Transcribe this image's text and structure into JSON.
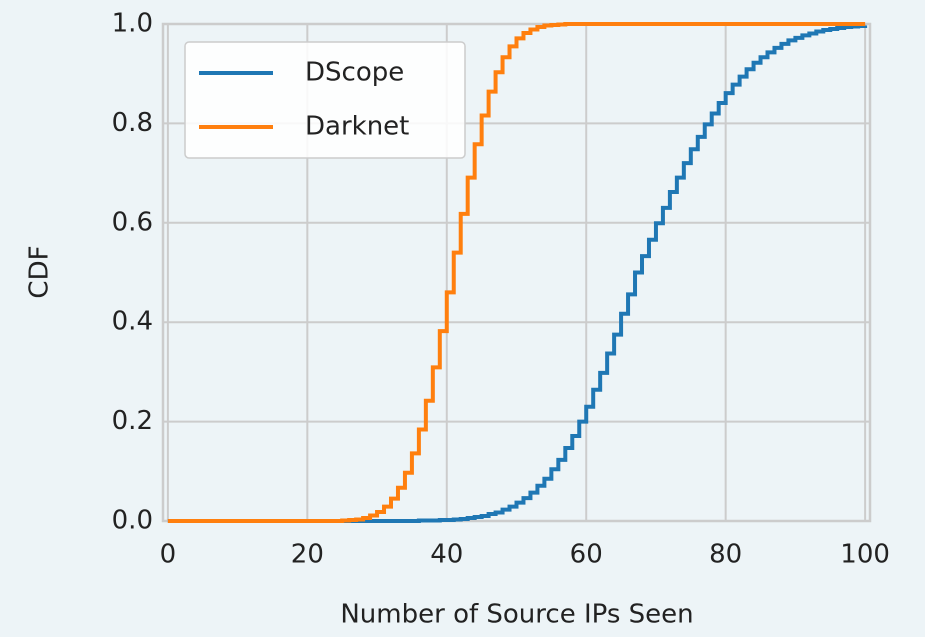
{
  "chart_data": {
    "type": "step",
    "xlabel": "Number of Source IPs Seen",
    "ylabel": "CDF",
    "x": [
      0,
      1,
      2,
      3,
      4,
      5,
      6,
      7,
      8,
      9,
      10,
      11,
      12,
      13,
      14,
      15,
      16,
      17,
      18,
      19,
      20,
      21,
      22,
      23,
      24,
      25,
      26,
      27,
      28,
      29,
      30,
      31,
      32,
      33,
      34,
      35,
      36,
      37,
      38,
      39,
      40,
      41,
      42,
      43,
      44,
      45,
      46,
      47,
      48,
      49,
      50,
      51,
      52,
      53,
      54,
      55,
      56,
      57,
      58,
      59,
      60,
      61,
      62,
      63,
      64,
      65,
      66,
      67,
      68,
      69,
      70,
      71,
      72,
      73,
      74,
      75,
      76,
      77,
      78,
      79,
      80,
      81,
      82,
      83,
      84,
      85,
      86,
      87,
      88,
      89,
      90,
      91,
      92,
      93,
      94,
      95,
      96,
      97,
      98,
      99,
      100
    ],
    "series": [
      {
        "name": "DScope",
        "color": "#1f77b4",
        "values": [
          0,
          0,
          0,
          0,
          0,
          0,
          0,
          0,
          0,
          0,
          0,
          0,
          0,
          0,
          0,
          0,
          0,
          0,
          0,
          0,
          0,
          0,
          0,
          0,
          0,
          0,
          0,
          0,
          0,
          0,
          0,
          0,
          0,
          0,
          0,
          0,
          0.001,
          0.001,
          0.001,
          0.002,
          0.002,
          0.003,
          0.004,
          0.006,
          0.008,
          0.01,
          0.014,
          0.017,
          0.023,
          0.029,
          0.037,
          0.046,
          0.057,
          0.071,
          0.085,
          0.104,
          0.123,
          0.147,
          0.171,
          0.2,
          0.23,
          0.264,
          0.298,
          0.337,
          0.375,
          0.417,
          0.456,
          0.5,
          0.533,
          0.566,
          0.599,
          0.63,
          0.662,
          0.691,
          0.72,
          0.748,
          0.773,
          0.798,
          0.82,
          0.841,
          0.861,
          0.878,
          0.894,
          0.909,
          0.922,
          0.933,
          0.943,
          0.952,
          0.96,
          0.967,
          0.972,
          0.977,
          0.981,
          0.985,
          0.988,
          0.99,
          0.992,
          0.994,
          0.995,
          0.996,
          0.997
        ]
      },
      {
        "name": "Darknet",
        "color": "#ff7f0e",
        "values": [
          0,
          0,
          0,
          0,
          0,
          0,
          0,
          0,
          0,
          0,
          0,
          0,
          0,
          0,
          0,
          0,
          0,
          0,
          0,
          0,
          0,
          0,
          0,
          0,
          0,
          0.001,
          0.002,
          0.003,
          0.006,
          0.011,
          0.018,
          0.029,
          0.045,
          0.067,
          0.097,
          0.136,
          0.184,
          0.242,
          0.309,
          0.382,
          0.46,
          0.54,
          0.618,
          0.691,
          0.758,
          0.816,
          0.864,
          0.903,
          0.933,
          0.955,
          0.971,
          0.982,
          0.989,
          0.994,
          0.997,
          0.998,
          0.999,
          1,
          1,
          1,
          1,
          1,
          1,
          1,
          1,
          1,
          1,
          1,
          1,
          1,
          1,
          1,
          1,
          1,
          1,
          1,
          1,
          1,
          1,
          1,
          1,
          1,
          1,
          1,
          1,
          1,
          1,
          1,
          1,
          1,
          1,
          1,
          1,
          1,
          1,
          1,
          1,
          1,
          1,
          1,
          1
        ]
      }
    ],
    "xlim": [
      -0.7,
      100.7
    ],
    "ylim": [
      0,
      1
    ],
    "xticks": [
      0,
      20,
      40,
      60,
      80,
      100
    ],
    "yticks": [
      {
        "value": 0,
        "label": "0.0"
      },
      {
        "value": 0.2,
        "label": "0.2"
      },
      {
        "value": 0.4,
        "label": "0.4"
      },
      {
        "value": 0.6,
        "label": "0.6"
      },
      {
        "value": 0.8,
        "label": "0.8"
      },
      {
        "value": 1,
        "label": "1.0"
      }
    ],
    "grid": true,
    "legend": "upper left"
  }
}
